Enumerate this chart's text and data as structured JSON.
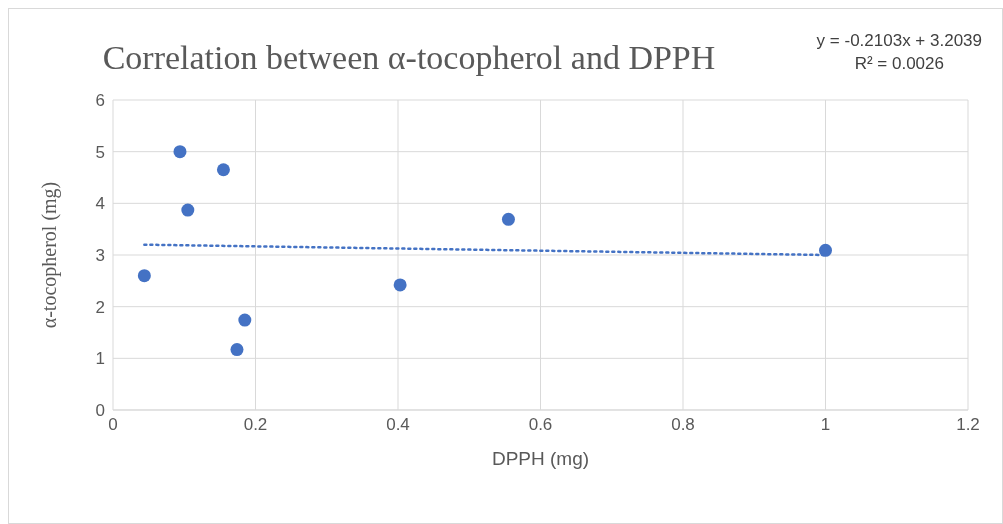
{
  "chart_data": {
    "type": "scatter",
    "title": "Correlation between α-tocopherol and DPPH",
    "xlabel": "DPPH (mg)",
    "ylabel": "α-tocopherol (mg)",
    "xlim": [
      0,
      1.2
    ],
    "xticks": [
      0,
      0.2,
      0.4,
      0.6,
      0.8,
      1,
      1.2
    ],
    "ylim": [
      0,
      6
    ],
    "yticks": [
      0,
      1,
      2,
      3,
      4,
      5,
      6
    ],
    "grid": true,
    "legend": false,
    "series": [
      {
        "color": "#4472c4",
        "marker": "circle",
        "x": [
          0.044,
          0.094,
          0.105,
          0.155,
          0.185,
          0.174,
          0.403,
          0.555,
          1.0
        ],
        "values": [
          2.6,
          5.0,
          3.87,
          4.65,
          1.74,
          1.17,
          2.42,
          3.69,
          3.09
        ]
      },
      {
        "type": "line",
        "color": "#4472c4",
        "marker": "none",
        "line_style": "dotted",
        "x": [
          0.044,
          1.0
        ],
        "values": [
          3.2,
          3.0
        ]
      }
    ],
    "annotations": [
      "y = -0.2103x + 3.2039",
      "R² = 0.0026"
    ]
  }
}
